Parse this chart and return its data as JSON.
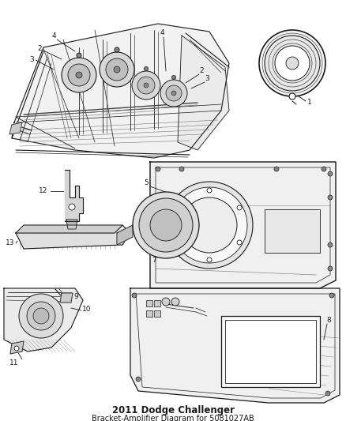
{
  "title": "2011 Dodge Challenger",
  "subtitle": "Bracket-Amplifier Diagram",
  "part_number": "5081027AB",
  "background_color": "#ffffff",
  "line_color": "#1a1a1a",
  "gray_light": "#cccccc",
  "gray_mid": "#999999",
  "gray_dark": "#555555",
  "fig_width": 4.38,
  "fig_height": 5.33,
  "dpi": 100,
  "label_fontsize": 6.5,
  "title_fontsize": 8.5,
  "subtitle_fontsize": 7.0
}
